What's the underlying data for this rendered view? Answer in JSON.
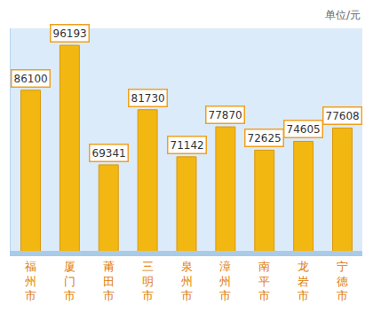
{
  "chart_data": {
    "type": "bar",
    "ylabel": "单位/元",
    "categories": [
      "福州市",
      "厦门市",
      "莆田市",
      "三明市",
      "泉州市",
      "漳州市",
      "南平市",
      "龙岩市",
      "宁德市"
    ],
    "values": [
      86100,
      96193,
      69341,
      81730,
      71142,
      77870,
      72625,
      74605,
      77608
    ],
    "color": "#f3b712",
    "ylim": [
      50000,
      100000
    ],
    "grid": false,
    "data_labels": true,
    "tick_labels": "x"
  }
}
